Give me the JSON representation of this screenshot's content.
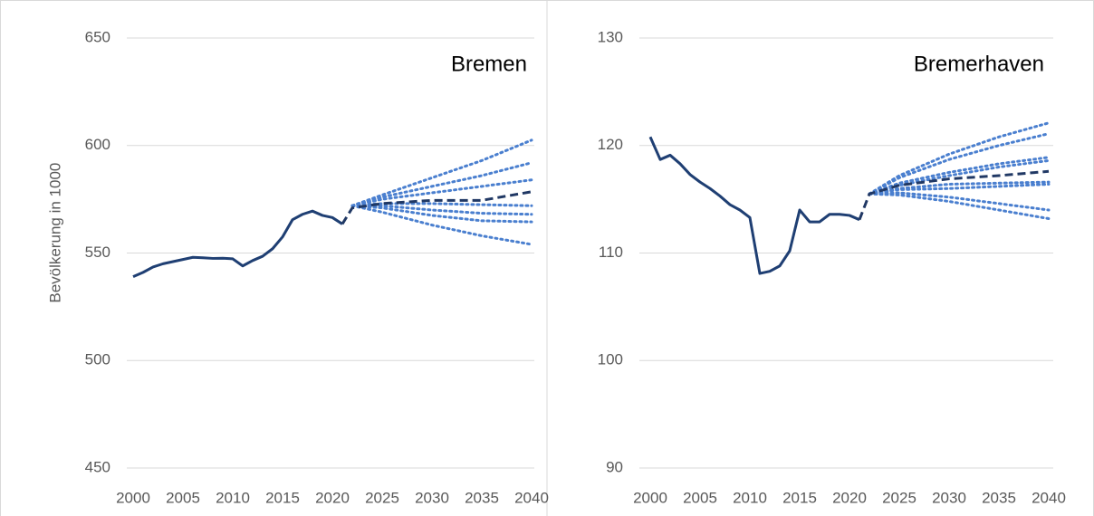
{
  "chart_data": [
    {
      "type": "line",
      "title": "Bremen",
      "ylabel": "Bevölkerung in 1000",
      "xlim": [
        2000,
        2040
      ],
      "xticks": [
        2000,
        2005,
        2010,
        2015,
        2020,
        2025,
        2030,
        2035,
        2040
      ],
      "ylim": [
        450,
        650
      ],
      "yticks": [
        450,
        500,
        550,
        600,
        650
      ],
      "grid": true,
      "series": [
        {
          "style": "solid",
          "color": "#1f3f73",
          "x": [
            2000,
            2001,
            2002,
            2003,
            2004,
            2005,
            2006,
            2007,
            2008,
            2009,
            2010,
            2011,
            2012,
            2013,
            2014,
            2015,
            2016,
            2017,
            2018,
            2019,
            2020,
            2021
          ],
          "values": [
            539,
            541,
            543.5,
            545,
            546,
            547,
            548,
            547.8,
            547.5,
            547.6,
            547.3,
            544,
            546.5,
            548.5,
            552,
            557.5,
            565.5,
            568,
            569.5,
            567.5,
            566.5,
            563.5
          ]
        },
        {
          "style": "dotted",
          "color": "#4a7fcf",
          "x": [
            2022,
            2025,
            2030,
            2035,
            2040
          ],
          "values": [
            572,
            577,
            585,
            593,
            602.5
          ]
        },
        {
          "style": "dotted",
          "color": "#4a7fcf",
          "x": [
            2022,
            2025,
            2030,
            2035,
            2040
          ],
          "values": [
            572,
            576,
            581,
            586,
            592
          ]
        },
        {
          "style": "dotted",
          "color": "#4a7fcf",
          "x": [
            2022,
            2025,
            2030,
            2035,
            2040
          ],
          "values": [
            572,
            575,
            578,
            581,
            584
          ]
        },
        {
          "style": "dotted",
          "color": "#4a7fcf",
          "x": [
            2022,
            2025,
            2030,
            2035,
            2040
          ],
          "values": [
            572,
            573,
            573,
            572.5,
            572
          ]
        },
        {
          "style": "dotted",
          "color": "#4a7fcf",
          "x": [
            2022,
            2025,
            2030,
            2035,
            2040
          ],
          "values": [
            572,
            572,
            570,
            568.5,
            568
          ]
        },
        {
          "style": "dotted",
          "color": "#4a7fcf",
          "x": [
            2022,
            2025,
            2030,
            2035,
            2040
          ],
          "values": [
            572,
            571,
            567.5,
            565,
            564.5
          ]
        },
        {
          "style": "dotted",
          "color": "#4a7fcf",
          "x": [
            2022,
            2025,
            2030,
            2035,
            2040
          ],
          "values": [
            572,
            569,
            563,
            558,
            554
          ]
        },
        {
          "style": "dashed",
          "color": "#203864",
          "x": [
            2021,
            2022,
            2025,
            2030,
            2035,
            2040
          ],
          "values": [
            563.5,
            571,
            573,
            574.5,
            574.5,
            578.5
          ]
        }
      ]
    },
    {
      "type": "line",
      "title": "Bremerhaven",
      "xlim": [
        2000,
        2040
      ],
      "xticks": [
        2000,
        2005,
        2010,
        2015,
        2020,
        2025,
        2030,
        2035,
        2040
      ],
      "ylim": [
        90,
        130
      ],
      "yticks": [
        90,
        100,
        110,
        120,
        130
      ],
      "grid": true,
      "series": [
        {
          "style": "solid",
          "color": "#1f3f73",
          "x": [
            2000,
            2001,
            2002,
            2003,
            2004,
            2005,
            2006,
            2007,
            2008,
            2009,
            2010,
            2011,
            2012,
            2013,
            2014,
            2015,
            2016,
            2017,
            2018,
            2019,
            2020,
            2021
          ],
          "values": [
            120.8,
            118.7,
            119.1,
            118.3,
            117.3,
            116.6,
            116.0,
            115.3,
            114.5,
            114.0,
            113.3,
            108.1,
            108.3,
            108.8,
            110.2,
            114.0,
            112.9,
            112.9,
            113.6,
            113.6,
            113.5,
            113.1
          ]
        },
        {
          "style": "dotted",
          "color": "#4a7fcf",
          "x": [
            2022,
            2025,
            2030,
            2035,
            2040
          ],
          "values": [
            115.5,
            117.2,
            119.2,
            120.8,
            122.1
          ]
        },
        {
          "style": "dotted",
          "color": "#4a7fcf",
          "x": [
            2022,
            2025,
            2030,
            2035,
            2040
          ],
          "values": [
            115.5,
            117,
            118.7,
            120,
            121.1
          ]
        },
        {
          "style": "dotted",
          "color": "#4a7fcf",
          "x": [
            2022,
            2025,
            2030,
            2035,
            2040
          ],
          "values": [
            115.5,
            116.5,
            117.5,
            118.3,
            118.9
          ]
        },
        {
          "style": "dotted",
          "color": "#4a7fcf",
          "x": [
            2022,
            2025,
            2030,
            2035,
            2040
          ],
          "values": [
            115.5,
            116.3,
            117.2,
            118,
            118.6
          ]
        },
        {
          "style": "dotted",
          "color": "#4a7fcf",
          "x": [
            2022,
            2025,
            2030,
            2035,
            2040
          ],
          "values": [
            115.5,
            116,
            116.4,
            116.5,
            116.6
          ]
        },
        {
          "style": "dotted",
          "color": "#4a7fcf",
          "x": [
            2022,
            2025,
            2030,
            2035,
            2040
          ],
          "values": [
            115.5,
            115.9,
            116,
            116.2,
            116.4
          ]
        },
        {
          "style": "dotted",
          "color": "#4a7fcf",
          "x": [
            2022,
            2025,
            2030,
            2035,
            2040
          ],
          "values": [
            115.5,
            115.6,
            115.2,
            114.6,
            114.0
          ]
        },
        {
          "style": "dotted",
          "color": "#4a7fcf",
          "x": [
            2022,
            2025,
            2030,
            2035,
            2040
          ],
          "values": [
            115.5,
            115.4,
            114.8,
            114,
            113.2
          ]
        },
        {
          "style": "dashed",
          "color": "#203864",
          "x": [
            2021,
            2022,
            2025,
            2030,
            2035,
            2040
          ],
          "values": [
            113.1,
            115.5,
            116.3,
            116.9,
            117.2,
            117.6
          ]
        }
      ]
    }
  ]
}
